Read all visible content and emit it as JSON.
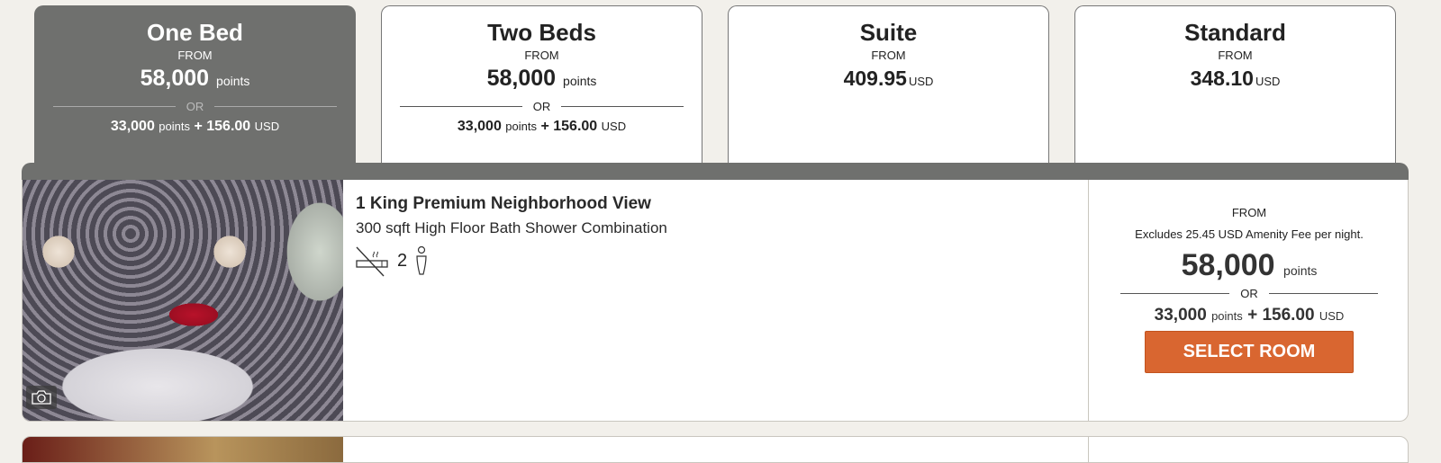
{
  "tabs": [
    {
      "title": "One Bed",
      "from": "FROM",
      "points": "58,000",
      "points_unit": "points",
      "or": "OR",
      "combo_points": "33,000",
      "combo_points_unit": "points",
      "plus": "+",
      "combo_cash": "156.00",
      "combo_currency": "USD",
      "active": true
    },
    {
      "title": "Two Beds",
      "from": "FROM",
      "points": "58,000",
      "points_unit": "points",
      "or": "OR",
      "combo_points": "33,000",
      "combo_points_unit": "points",
      "plus": "+",
      "combo_cash": "156.00",
      "combo_currency": "USD",
      "active": false
    },
    {
      "title": "Suite",
      "from": "FROM",
      "cash": "409.95",
      "currency": "USD",
      "active": false
    },
    {
      "title": "Standard",
      "from": "FROM",
      "cash": "348.10",
      "currency": "USD",
      "active": false
    }
  ],
  "room": {
    "name": "1 King Premium Neighborhood View",
    "description": "300 sqft High Floor Bath Shower Combination",
    "occupancy": "2",
    "icons": [
      "no-smoking-icon",
      "person-icon",
      "camera-icon"
    ],
    "price": {
      "from": "FROM",
      "excludes": "Excludes 25.45 USD Amenity Fee per night.",
      "points": "58,000",
      "points_unit": "points",
      "or": "OR",
      "combo_points": "33,000",
      "combo_points_unit": "points",
      "plus": "+",
      "combo_cash": "156.00",
      "combo_currency": "USD",
      "select_label": "SELECT ROOM"
    }
  },
  "colors": {
    "active_tab": "#6f706e",
    "select_button": "#d96630",
    "background": "#f2f0eb"
  }
}
